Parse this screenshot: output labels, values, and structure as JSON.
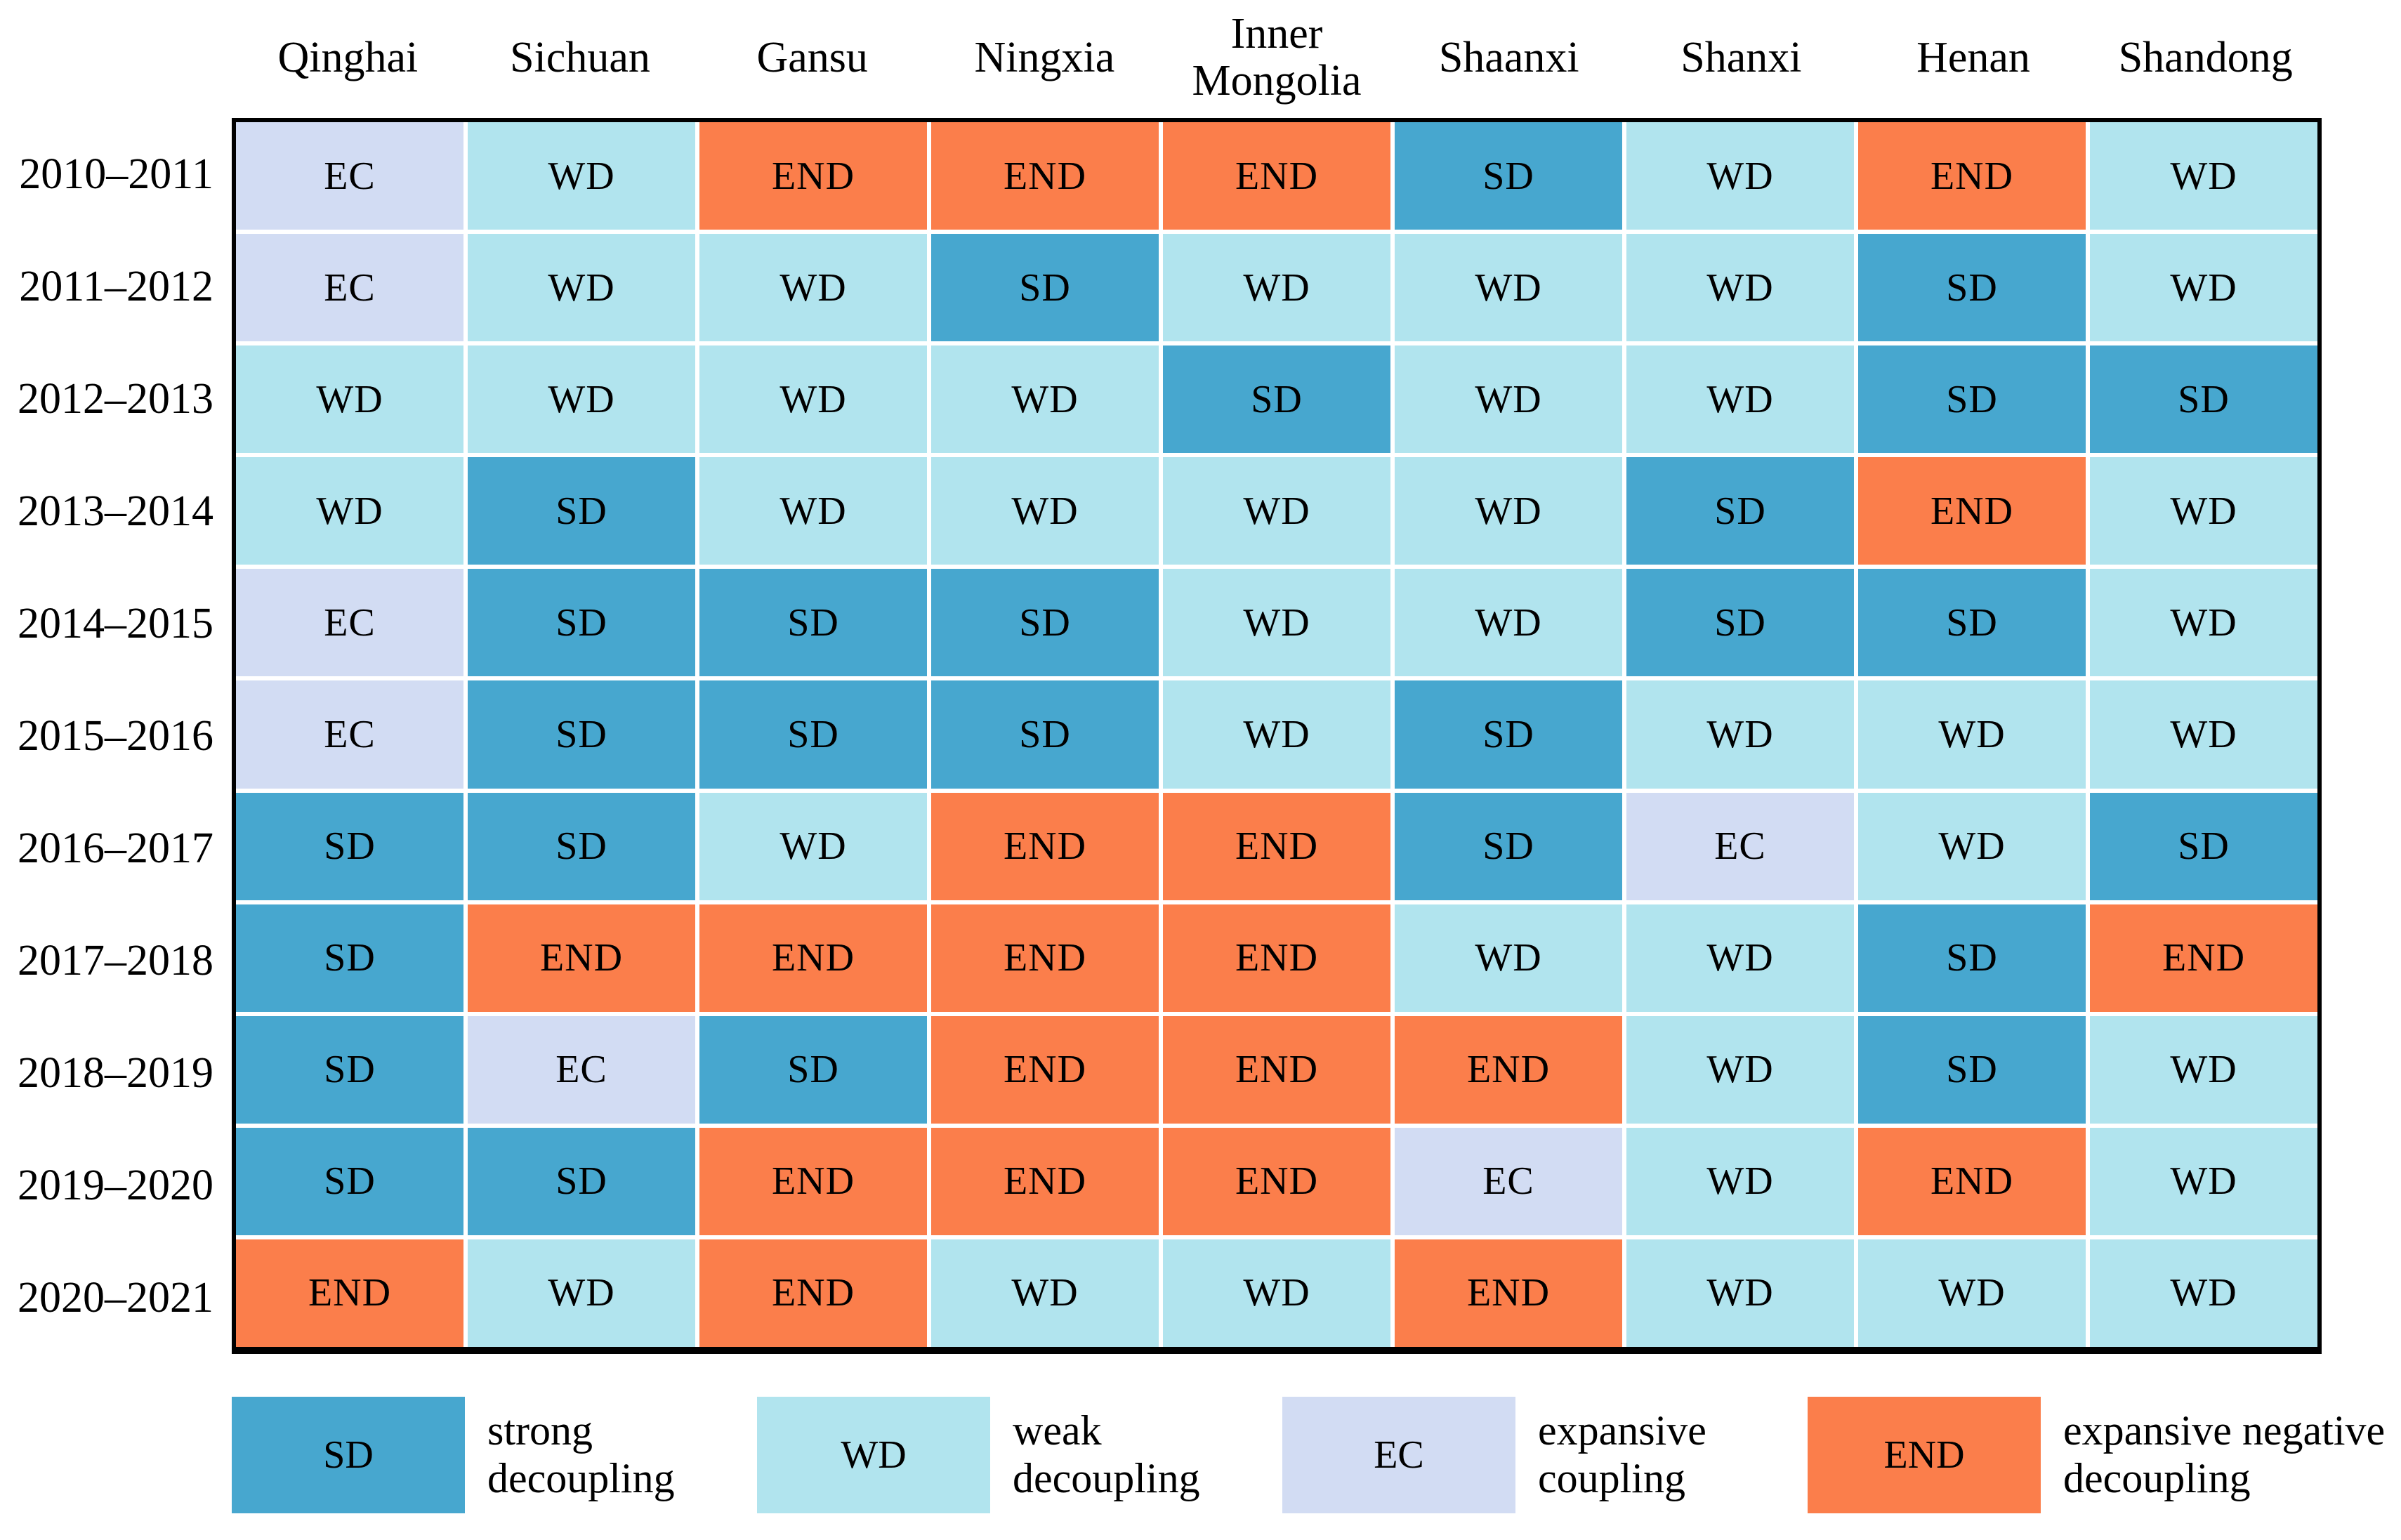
{
  "chart_data": {
    "type": "heatmap",
    "title": "",
    "xlabel": "",
    "ylabel": "",
    "grid": true,
    "legend_position": "bottom",
    "columns": [
      "Qinghai",
      "Sichuan",
      "Gansu",
      "Ningxia",
      "Inner Mongolia",
      "Shaanxi",
      "Shanxi",
      "Henan",
      "Shandong"
    ],
    "rows": [
      {
        "label": "2010–2011",
        "values": [
          "EC",
          "WD",
          "END",
          "END",
          "END",
          "SD",
          "WD",
          "END",
          "WD"
        ]
      },
      {
        "label": "2011–2012",
        "values": [
          "EC",
          "WD",
          "WD",
          "SD",
          "WD",
          "WD",
          "WD",
          "SD",
          "WD"
        ]
      },
      {
        "label": "2012–2013",
        "values": [
          "WD",
          "WD",
          "WD",
          "WD",
          "SD",
          "WD",
          "WD",
          "SD",
          "SD"
        ]
      },
      {
        "label": "2013–2014",
        "values": [
          "WD",
          "SD",
          "WD",
          "WD",
          "WD",
          "WD",
          "SD",
          "END",
          "WD"
        ]
      },
      {
        "label": "2014–2015",
        "values": [
          "EC",
          "SD",
          "SD",
          "SD",
          "WD",
          "WD",
          "SD",
          "SD",
          "WD"
        ]
      },
      {
        "label": "2015–2016",
        "values": [
          "EC",
          "SD",
          "SD",
          "SD",
          "WD",
          "SD",
          "WD",
          "WD",
          "WD"
        ]
      },
      {
        "label": "2016–2017",
        "values": [
          "SD",
          "SD",
          "WD",
          "END",
          "END",
          "SD",
          "EC",
          "WD",
          "SD"
        ]
      },
      {
        "label": "2017–2018",
        "values": [
          "SD",
          "END",
          "END",
          "END",
          "END",
          "WD",
          "WD",
          "SD",
          "END"
        ]
      },
      {
        "label": "2018–2019",
        "values": [
          "SD",
          "EC",
          "SD",
          "END",
          "END",
          "END",
          "WD",
          "SD",
          "WD"
        ]
      },
      {
        "label": "2019–2020",
        "values": [
          "SD",
          "SD",
          "END",
          "END",
          "END",
          "EC",
          "WD",
          "END",
          "WD"
        ]
      },
      {
        "label": "2020–2021",
        "values": [
          "END",
          "WD",
          "END",
          "WD",
          "WD",
          "END",
          "WD",
          "WD",
          "WD"
        ]
      }
    ],
    "cell_colors": {
      "SD": "#47A7CF",
      "WD": "#B1E4EE",
      "EC": "#D2DCF3",
      "END": "#FB7E4B"
    },
    "legend": [
      {
        "code": "SD",
        "label": "strong\ndecoupling"
      },
      {
        "code": "WD",
        "label": "weak\ndecoupling"
      },
      {
        "code": "EC",
        "label": "expansive\ncoupling"
      },
      {
        "code": "END",
        "label": "expansive negative\ndecoupling"
      }
    ]
  }
}
